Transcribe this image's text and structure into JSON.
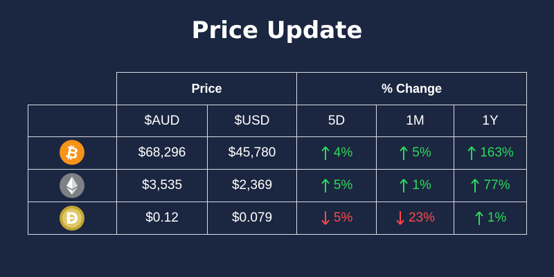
{
  "title": "Price Update",
  "headers": {
    "price_group": "Price",
    "change_group": "% Change",
    "aud": "$AUD",
    "usd": "$USD",
    "d5": "5D",
    "m1": "1M",
    "y1": "1Y"
  },
  "rows": [
    {
      "icon": "bitcoin-icon",
      "icon_color": "#f7931a",
      "aud": "$68,296",
      "usd": "$45,780",
      "d5": {
        "value": "4%",
        "direction": "up"
      },
      "m1": {
        "value": "5%",
        "direction": "up"
      },
      "y1": {
        "value": "163%",
        "direction": "up"
      }
    },
    {
      "icon": "ethereum-icon",
      "icon_color": "#7d8085",
      "aud": "$3,535",
      "usd": "$2,369",
      "d5": {
        "value": "5%",
        "direction": "up"
      },
      "m1": {
        "value": "1%",
        "direction": "up"
      },
      "y1": {
        "value": "77%",
        "direction": "up"
      }
    },
    {
      "icon": "dogecoin-icon",
      "icon_color": "#c2a633",
      "aud": "$0.12",
      "usd": "$0.079",
      "d5": {
        "value": "5%",
        "direction": "down"
      },
      "m1": {
        "value": "23%",
        "direction": "down"
      },
      "y1": {
        "value": "1%",
        "direction": "up"
      }
    }
  ],
  "colors": {
    "background": "#1b2640",
    "up": "#2bd95a",
    "down": "#ff4a4a",
    "grid": "#d8dde8"
  }
}
